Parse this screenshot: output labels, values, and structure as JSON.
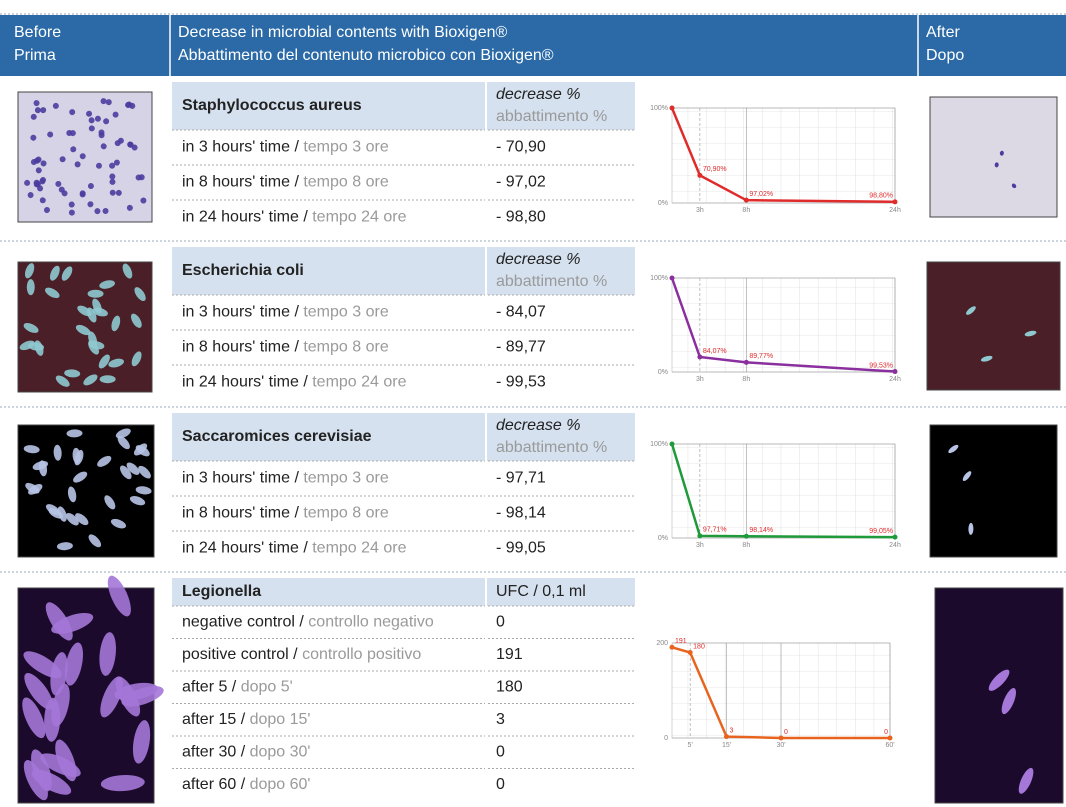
{
  "header": {
    "before": "Before",
    "before_it": "Prima",
    "title": "Decrease in microbial contents with Bioxigen®",
    "title_it": "Abbattimento del contenuto microbico con Bioxigen®",
    "after": "After",
    "after_it": "Dopo"
  },
  "sections": [
    {
      "name": "Staphylococcus aureus",
      "unit": "decrease %",
      "unit_it": "abbattimento %",
      "rows": [
        {
          "label": "in 3 hours' time / ",
          "label_it": "tempo 3 ore",
          "value": "- 70,90"
        },
        {
          "label": "in 8 hours' time / ",
          "label_it": "tempo 8 ore",
          "value": "- 97,02"
        },
        {
          "label": "in 24 hours' time / ",
          "label_it": "tempo 24 ore",
          "value": "- 98,80"
        }
      ],
      "chart": {
        "type": "line",
        "color": "#e02b2b",
        "xlim": [
          0,
          24
        ],
        "ylim": [
          0,
          100
        ],
        "xticks": [
          {
            "value": 3,
            "label": "3h"
          },
          {
            "value": 8,
            "label": "8h"
          },
          {
            "value": 24,
            "label": "24h"
          }
        ],
        "yticks": [
          {
            "value": 0,
            "label": "0%"
          },
          {
            "value": 100,
            "label": "100%"
          }
        ],
        "x": [
          0,
          3,
          8,
          24
        ],
        "values": [
          100,
          29.1,
          2.98,
          1.2
        ],
        "point_labels": [
          null,
          "70,90%",
          "97,02%",
          "98,80%"
        ]
      }
    },
    {
      "name": "Escherichia coli",
      "unit": "decrease %",
      "unit_it": "abbattimento %",
      "rows": [
        {
          "label": "in 3 hours' time / ",
          "label_it": "tempo 3 ore",
          "value": "- 84,07"
        },
        {
          "label": "in 8 hours' time / ",
          "label_it": "tempo 8 ore",
          "value": "- 89,77"
        },
        {
          "label": "in 24 hours' time / ",
          "label_it": "tempo 24 ore",
          "value": "- 99,53"
        }
      ],
      "chart": {
        "type": "line",
        "color": "#8a2f9e",
        "xlim": [
          0,
          24
        ],
        "ylim": [
          0,
          100
        ],
        "xticks": [
          {
            "value": 3,
            "label": "3h"
          },
          {
            "value": 8,
            "label": "8h"
          },
          {
            "value": 24,
            "label": "24h"
          }
        ],
        "yticks": [
          {
            "value": 0,
            "label": "0%"
          },
          {
            "value": 100,
            "label": "100%"
          }
        ],
        "x": [
          0,
          3,
          8,
          24
        ],
        "values": [
          100,
          15.93,
          10.23,
          0.47
        ],
        "point_labels": [
          null,
          "84,07%",
          "89,77%",
          "99,53%"
        ]
      }
    },
    {
      "name": "Saccaromices cerevisiae",
      "unit": "decrease %",
      "unit_it": "abbattimento %",
      "rows": [
        {
          "label": "in 3 hours' time / ",
          "label_it": "tempo 3 ore",
          "value": "- 97,71"
        },
        {
          "label": "in 8 hours' time / ",
          "label_it": "tempo 8 ore",
          "value": "- 98,14"
        },
        {
          "label": "in 24 hours' time / ",
          "label_it": "tempo 24 ore",
          "value": "- 99,05"
        }
      ],
      "chart": {
        "type": "line",
        "color": "#1f9a3a",
        "xlim": [
          0,
          24
        ],
        "ylim": [
          0,
          100
        ],
        "xticks": [
          {
            "value": 3,
            "label": "3h"
          },
          {
            "value": 8,
            "label": "8h"
          },
          {
            "value": 24,
            "label": "24h"
          }
        ],
        "yticks": [
          {
            "value": 0,
            "label": "0%"
          },
          {
            "value": 100,
            "label": "100%"
          }
        ],
        "x": [
          0,
          3,
          8,
          24
        ],
        "values": [
          100,
          2.29,
          1.86,
          0.95
        ],
        "point_labels": [
          null,
          "97,71%",
          "98,14%",
          "99,05%"
        ]
      }
    },
    {
      "name": "Legionella",
      "unit": "UFC / 0,1 ml",
      "rows": [
        {
          "label": "negative control / ",
          "label_it": "controllo negativo",
          "value": "0"
        },
        {
          "label": "positive control / ",
          "label_it": "controllo positivo",
          "value": "191"
        },
        {
          "label": "after 5 / ",
          "label_it": "dopo 5'",
          "value": "180"
        },
        {
          "label": "after 15 / ",
          "label_it": "dopo 15'",
          "value": "3"
        },
        {
          "label": "after 30 / ",
          "label_it": "dopo 30'",
          "value": "0"
        },
        {
          "label": "after 60 / ",
          "label_it": "dopo 60'",
          "value": "0"
        }
      ],
      "chart": {
        "type": "line",
        "color": "#e8641e",
        "xlim": [
          0,
          60
        ],
        "ylim": [
          0,
          200
        ],
        "xticks": [
          {
            "value": 5,
            "label": "5'"
          },
          {
            "value": 15,
            "label": "15'"
          },
          {
            "value": 30,
            "label": "30'"
          },
          {
            "value": 60,
            "label": "60'"
          }
        ],
        "yticks": [
          0,
          200
        ],
        "x": [
          0,
          5,
          15,
          30,
          60
        ],
        "values": [
          191,
          180,
          3,
          0,
          0
        ],
        "point_labels": [
          "191",
          "180",
          "3",
          "0",
          "0"
        ]
      }
    }
  ]
}
